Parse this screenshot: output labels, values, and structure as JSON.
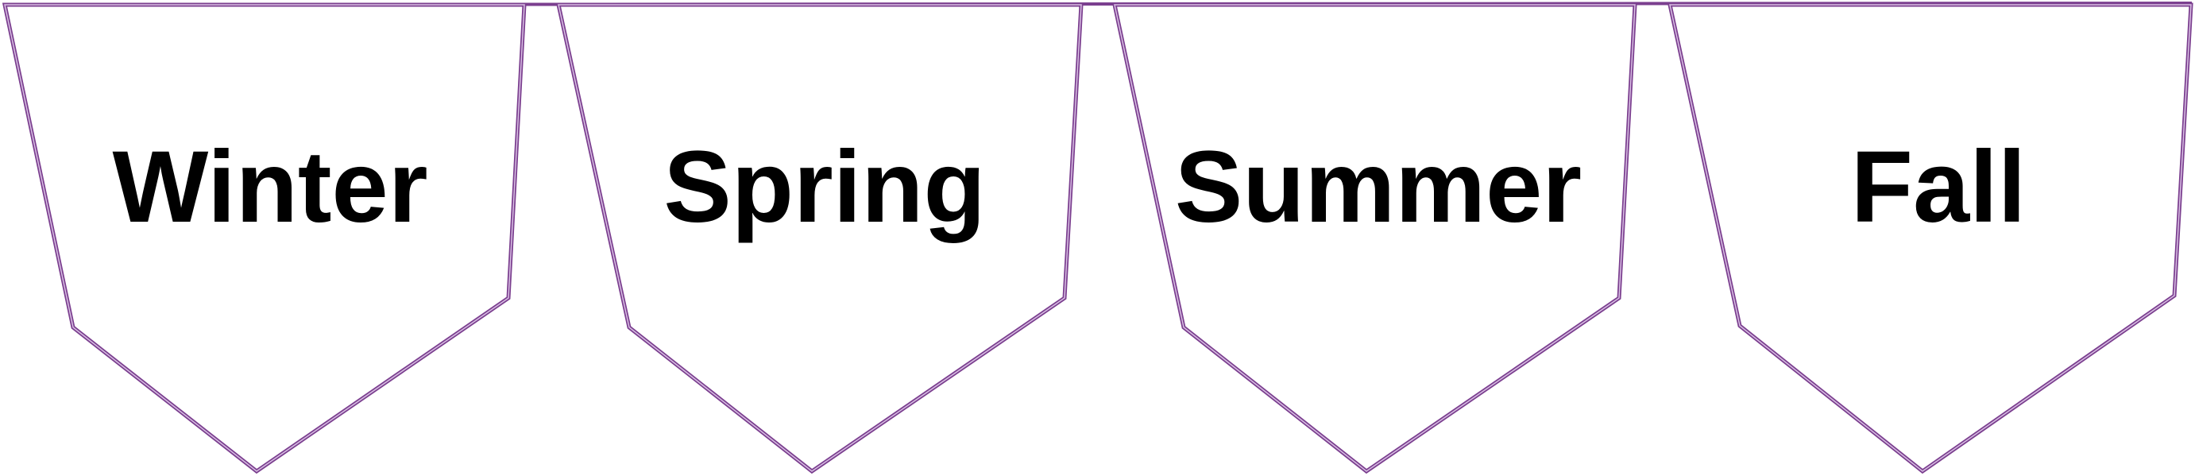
{
  "colors": {
    "outline": "#7b3f8f",
    "outline_inner": "#c7a4d6",
    "fill": "#ffffff",
    "text": "#000000",
    "background": "#ffffff"
  },
  "flags": [
    {
      "label": "Winter"
    },
    {
      "label": "Spring"
    },
    {
      "label": "Summer"
    },
    {
      "label": "Fall"
    }
  ]
}
